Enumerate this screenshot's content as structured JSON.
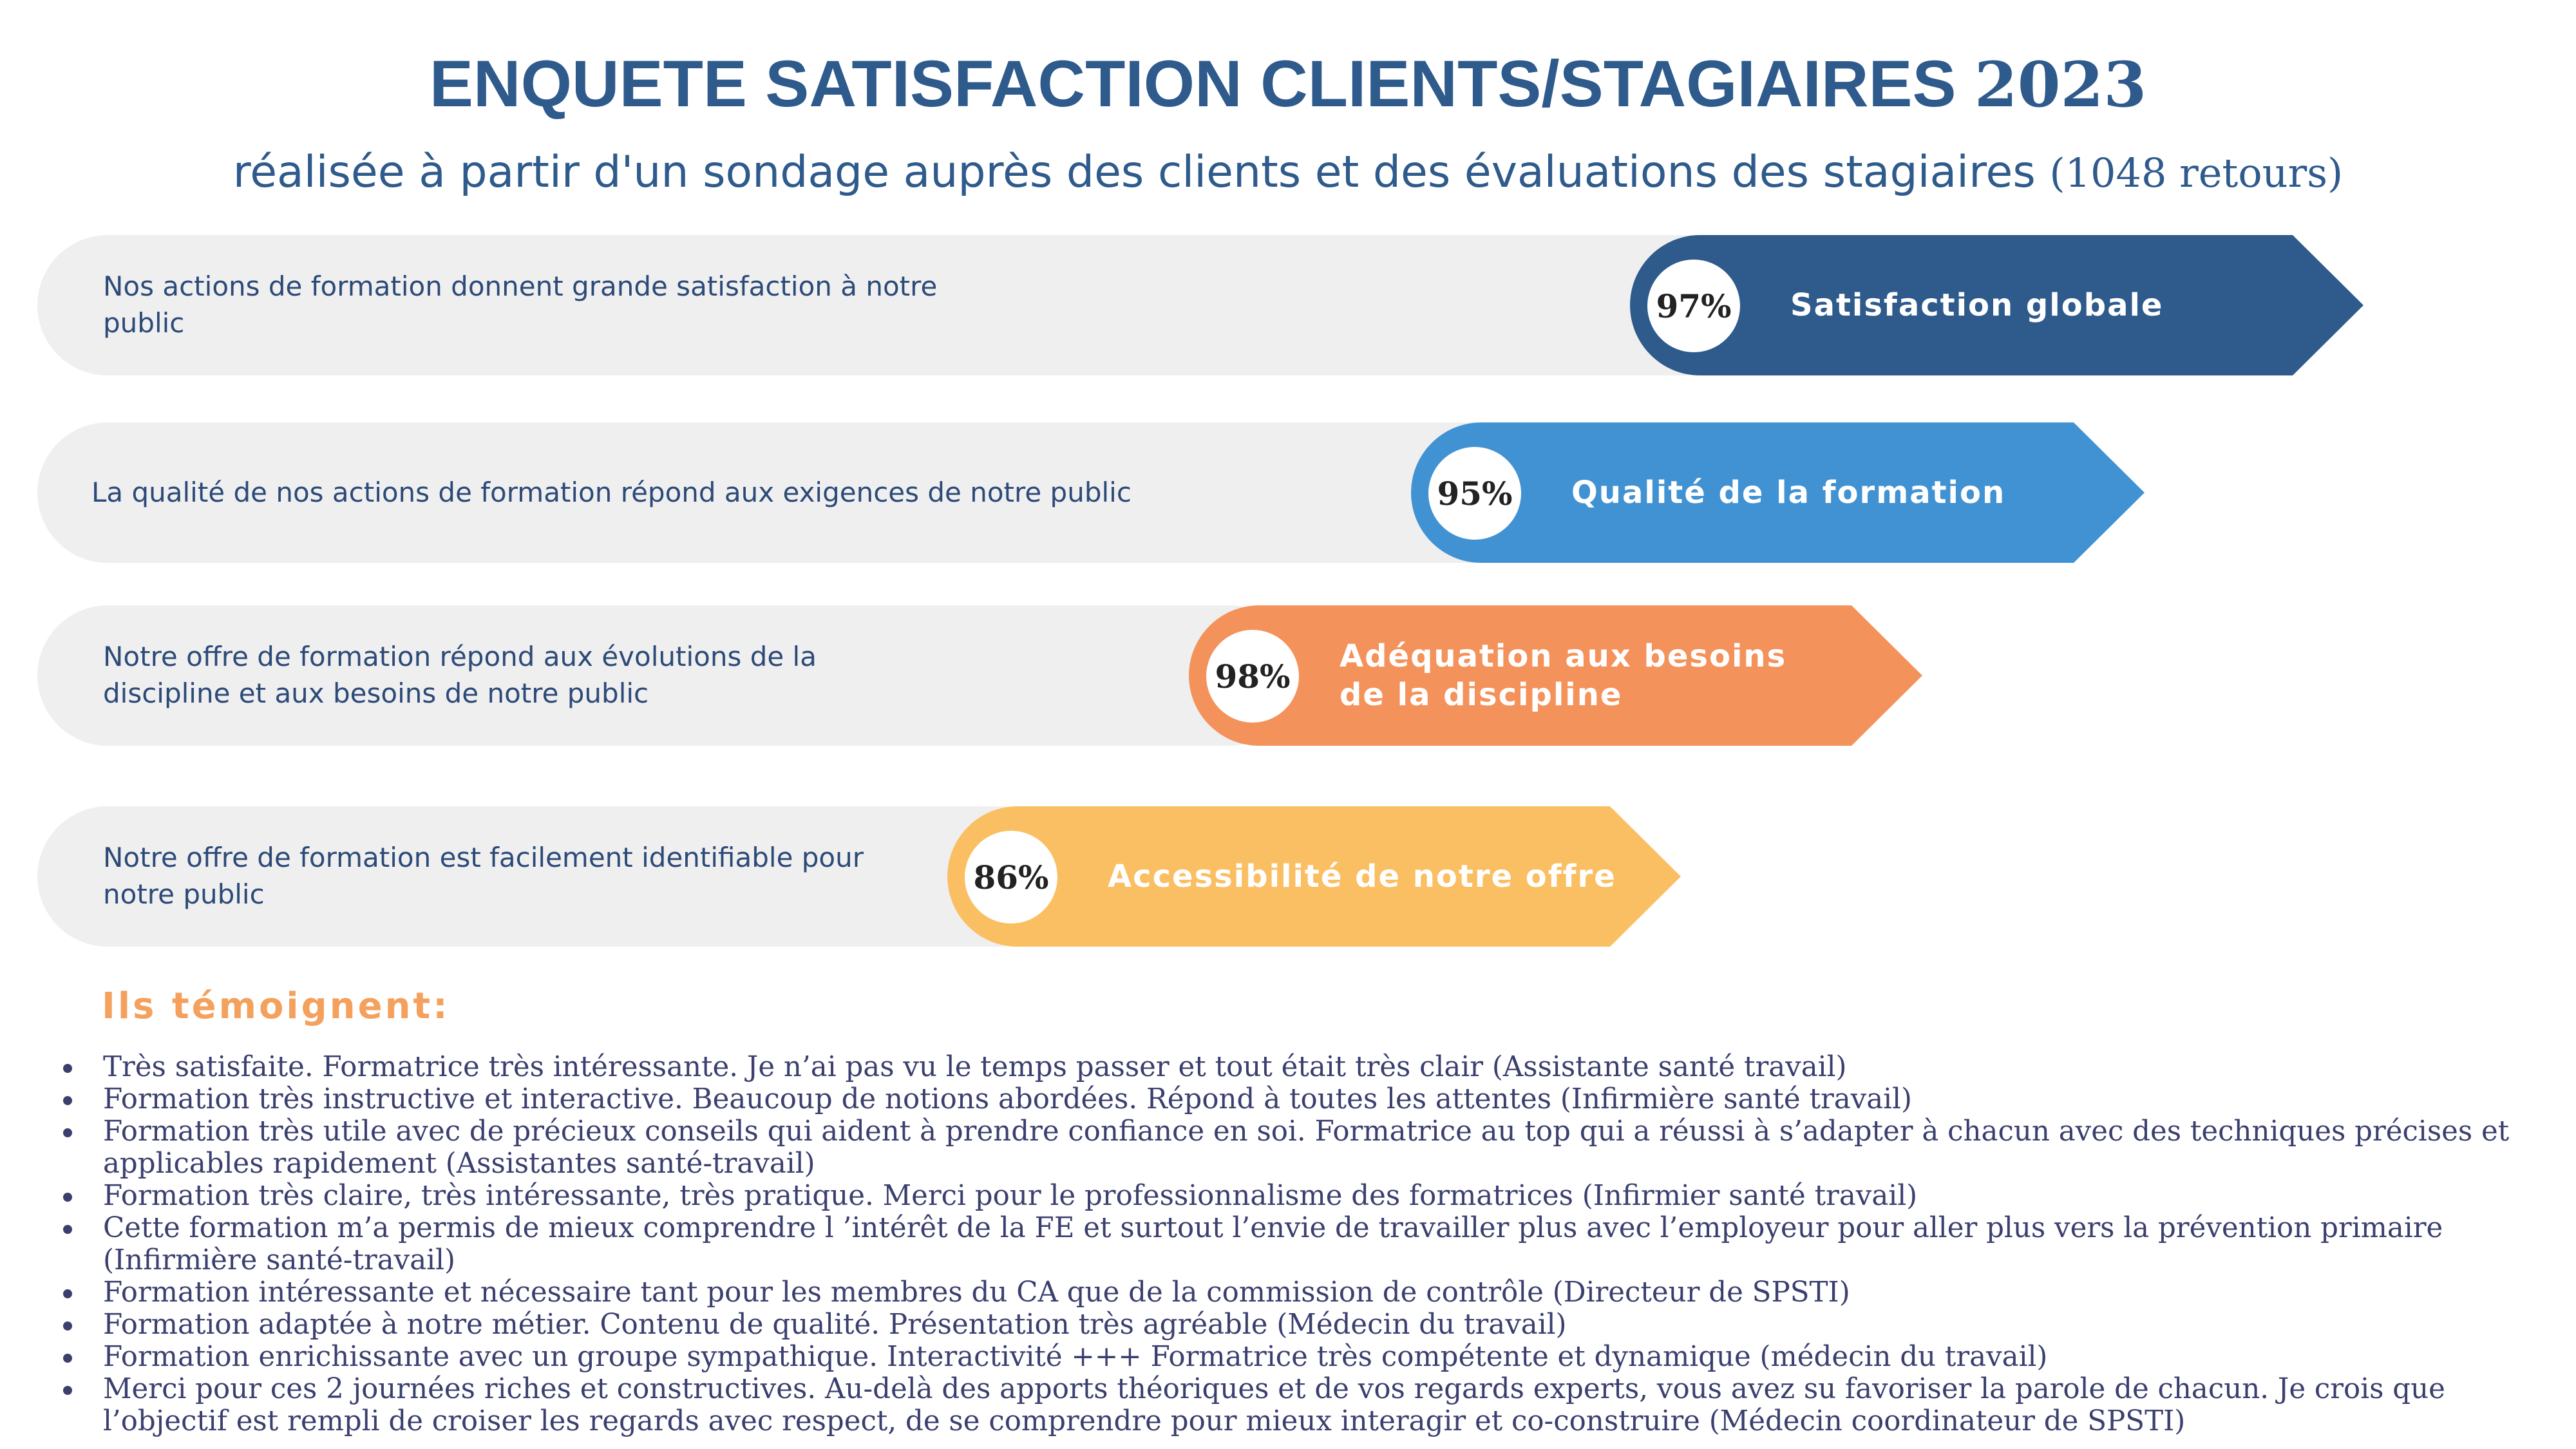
{
  "header": {
    "title": "ENQUETE SATISFACTION CLIENTS/STAGIAIRES",
    "year": "2023",
    "subtitle": "réalisée à partir d'un sondage auprès des clients et des évaluations des stagiaires",
    "returns": "(1048 retours)"
  },
  "indicators": [
    {
      "description": "Nos actions de formation donnent grande satisfaction à notre public",
      "percent": "97%",
      "label": "Satisfaction globale",
      "color": "#2e5a8c"
    },
    {
      "description": "La qualité de nos actions de formation répond aux exigences de notre public",
      "percent": "95%",
      "label": "Qualité de la formation",
      "color": "#4192d3"
    },
    {
      "description": "Notre offre de formation répond aux évolutions de la discipline et aux besoins de notre public",
      "percent": "98%",
      "label": "Adéquation aux besoins de la discipline",
      "color": "#f4925c"
    },
    {
      "description": "Notre offre de formation est facilement identifiable pour notre public",
      "percent": "86%",
      "label": "Accessibilité de notre offre",
      "color": "#fbbf63"
    }
  ],
  "testimonials": {
    "heading": "Ils témoignent:",
    "items": [
      "Très satisfaite. Formatrice très intéressante. Je n’ai pas vu le temps passer et tout était très clair (Assistante santé travail)",
      "Formation très instructive et interactive. Beaucoup de notions abordées. Répond à toutes les attentes (Infirmière santé travail)",
      "Formation très utile avec de précieux conseils qui aident à prendre confiance en soi. Formatrice au top  qui a  réussi à s’adapter à chacun avec des techniques précises et applicables rapidement (Assistantes santé-travail)",
      "Formation très claire, très intéressante, très pratique. Merci pour le professionnalisme des formatrices (Infirmier santé travail)",
      "Cette formation m’a permis de mieux comprendre l ’intérêt de la FE et surtout l’envie de travailler plus avec l’employeur pour aller plus vers la prévention primaire (Infirmière santé-travail)",
      "Formation intéressante et nécessaire tant pour les membres du CA que de la commission de contrôle (Directeur de SPSTI)",
      "Formation adaptée à notre métier. Contenu de qualité. Présentation très agréable (Médecin du travail)",
      "Formation enrichissante avec un groupe sympathique. Interactivité +++ Formatrice très compétente et dynamique (médecin du travail)",
      "Merci pour ces 2 journées riches et constructives. Au-delà des apports théoriques et de vos regards experts, vous avez su favoriser la parole de chacun. Je crois que l’objectif est rempli de croiser les regards avec respect, de se comprendre pour mieux interagir et co-construire  (Médecin coordinateur de SPSTI)"
    ]
  }
}
